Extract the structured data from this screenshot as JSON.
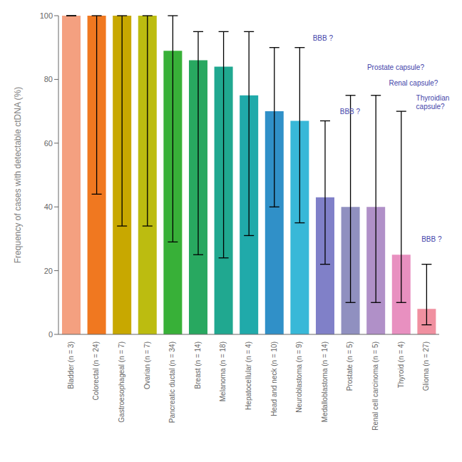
{
  "chart_data": {
    "type": "bar",
    "categories": [
      "Bladder (n = 3)",
      "Colorectal (n = 24)",
      "Gastroesophageal (n = 7)",
      "Ovarian (n = 7)",
      "Pancreatic ductal (n = 34)",
      "Breast (n = 14)",
      "Melanoma (n = 18)",
      "Hepatocellular (n = 4)",
      "Head and neck (n = 10)",
      "Neuroblastoma (n = 9)",
      "Medalloblastoma (n = 14)",
      "Prostate (n = 5)",
      "Renal cell carcinoma (n = 5)",
      "Thyroid (n = 4)",
      "Glioma (n = 27)"
    ],
    "values": [
      100,
      100,
      100,
      100,
      89,
      86,
      84,
      75,
      70,
      67,
      43,
      40,
      40,
      25,
      8
    ],
    "err_low": [
      100,
      44,
      34,
      34,
      29,
      25,
      24,
      31,
      40,
      35,
      22,
      10,
      10,
      10,
      3
    ],
    "err_high": [
      100,
      100,
      100,
      100,
      100,
      95,
      95,
      95,
      90,
      90,
      67,
      75,
      75,
      70,
      22
    ],
    "colors": [
      "#F4A080",
      "#F07820",
      "#C8A800",
      "#BCBC10",
      "#38B038",
      "#28A860",
      "#20A890",
      "#20AAAA",
      "#3090C8",
      "#38B8D8",
      "#8080C8",
      "#9090C0",
      "#B090C8",
      "#E890C0",
      "#F090A0"
    ],
    "ylabel": "Frequency of cases with detectable ctDNA (%)",
    "ylim": [
      0,
      100
    ],
    "yticks": [
      0,
      20,
      40,
      60,
      80,
      100
    ],
    "grid": false,
    "annotations": [
      {
        "text": "BBB ?",
        "x": 9.35,
        "y": 93,
        "color": "#4444AA"
      },
      {
        "text": "BBB ?",
        "x": 10.35,
        "y": 70,
        "color": "#4444AA"
      },
      {
        "text": "Prostate capsule?",
        "x": 11.35,
        "y": 84,
        "color": "#4444AA"
      },
      {
        "text": "Renal capsule?",
        "x": 12.15,
        "y": 79,
        "color": "#4444AA"
      },
      {
        "text": "Thyroidian\ncapsule?",
        "x": 13.15,
        "y": 73,
        "color": "#4444AA"
      },
      {
        "text": "BBB ?",
        "x": 13.35,
        "y": 30,
        "color": "#4444AA"
      }
    ]
  }
}
